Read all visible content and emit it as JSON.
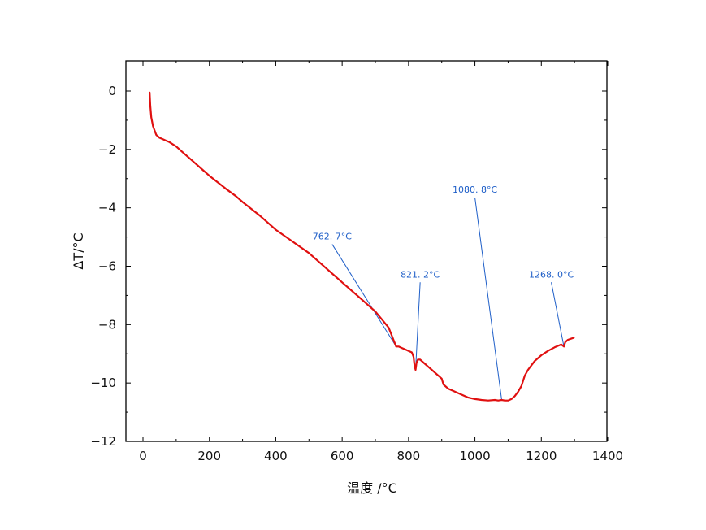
{
  "chart_data": {
    "type": "line",
    "xlabel": "温度 /°C",
    "ylabel": "ΔT/°C",
    "xlim": [
      -30,
      1400
    ],
    "ylim": [
      -12,
      1
    ],
    "x_ticks": [
      0,
      200,
      400,
      600,
      800,
      1000,
      1200,
      1400
    ],
    "y_ticks": [
      0,
      -2,
      -4,
      -6,
      -8,
      -10,
      -12
    ],
    "grid": false,
    "colors": {
      "line": "#e01010",
      "annotation": "#1f5fc8",
      "axis": "#000000"
    },
    "series": [
      {
        "x": [
          20,
          22,
          25,
          30,
          40,
          50,
          60,
          70,
          80,
          100,
          120,
          150,
          180,
          200,
          250,
          280,
          300,
          350,
          400,
          450,
          500,
          550,
          600,
          650,
          700,
          740,
          762.7,
          770,
          780,
          790,
          800,
          810,
          815,
          818,
          821.2,
          824,
          828,
          835,
          845,
          860,
          870,
          880,
          890,
          900,
          905,
          920,
          940,
          960,
          980,
          1000,
          1020,
          1040,
          1060,
          1070,
          1080.8,
          1090,
          1100,
          1110,
          1120,
          1130,
          1140,
          1150,
          1160,
          1170,
          1180,
          1200,
          1220,
          1240,
          1260,
          1268.0,
          1272,
          1280,
          1290,
          1298
        ],
        "y": [
          -0.05,
          -0.5,
          -0.9,
          -1.2,
          -1.5,
          -1.6,
          -1.65,
          -1.7,
          -1.75,
          -1.9,
          -2.1,
          -2.4,
          -2.7,
          -2.9,
          -3.35,
          -3.6,
          -3.8,
          -4.25,
          -4.75,
          -5.15,
          -5.55,
          -6.05,
          -6.55,
          -7.05,
          -7.55,
          -8.1,
          -8.75,
          -8.75,
          -8.8,
          -8.85,
          -8.9,
          -8.95,
          -9.1,
          -9.4,
          -9.55,
          -9.3,
          -9.2,
          -9.2,
          -9.3,
          -9.45,
          -9.55,
          -9.65,
          -9.75,
          -9.85,
          -10.05,
          -10.2,
          -10.3,
          -10.4,
          -10.5,
          -10.55,
          -10.58,
          -10.6,
          -10.58,
          -10.6,
          -10.58,
          -10.6,
          -10.6,
          -10.55,
          -10.45,
          -10.3,
          -10.1,
          -9.75,
          -9.55,
          -9.4,
          -9.25,
          -9.05,
          -8.9,
          -8.78,
          -8.68,
          -8.75,
          -8.6,
          -8.52,
          -8.48,
          -8.45
        ]
      }
    ],
    "annotations": [
      {
        "label": "762. 7°C",
        "x": 762.7,
        "y": -8.75,
        "text_x": 570,
        "text_y": -5.25
      },
      {
        "label": "821. 2°C",
        "x": 821.2,
        "y": -9.55,
        "text_x": 835,
        "text_y": -6.55
      },
      {
        "label": "1080. 8°C",
        "x": 1080.8,
        "y": -10.6,
        "text_x": 1000,
        "text_y": -3.65
      },
      {
        "label": "1268. 0°C",
        "x": 1268.0,
        "y": -8.75,
        "text_x": 1230,
        "text_y": -6.55
      }
    ]
  }
}
